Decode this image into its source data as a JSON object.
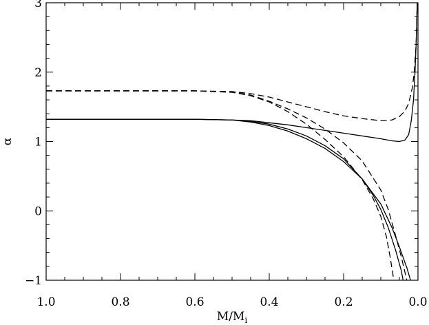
{
  "chart_data": {
    "type": "line",
    "title": "",
    "xlabel": "M/M",
    "xlabel_subscript": "i",
    "ylabel": "α",
    "xlim": [
      1.0,
      0.0
    ],
    "ylim": [
      -1.0,
      3.0
    ],
    "x_reversed": true,
    "grid": false,
    "legend": "none",
    "x_ticks": [
      1.0,
      0.8,
      0.6,
      0.4,
      0.2,
      0.0
    ],
    "x_tick_labels": [
      "1.0",
      "0.8",
      "0.6",
      "0.4",
      "0.2",
      "0.0"
    ],
    "y_ticks": [
      -1,
      0,
      1,
      2,
      3
    ],
    "y_tick_labels": [
      "−1",
      "0",
      "1",
      "2",
      "3"
    ],
    "series": [
      {
        "style": "solid",
        "color": "#000000",
        "points": [
          [
            1.0,
            1.32
          ],
          [
            0.9,
            1.32
          ],
          [
            0.8,
            1.32
          ],
          [
            0.7,
            1.32
          ],
          [
            0.6,
            1.32
          ],
          [
            0.5,
            1.31
          ],
          [
            0.45,
            1.3
          ],
          [
            0.4,
            1.27
          ],
          [
            0.35,
            1.24
          ],
          [
            0.3,
            1.2
          ],
          [
            0.25,
            1.16
          ],
          [
            0.2,
            1.12
          ],
          [
            0.15,
            1.08
          ],
          [
            0.1,
            1.04
          ],
          [
            0.07,
            1.01
          ],
          [
            0.05,
            1.0
          ],
          [
            0.035,
            1.02
          ],
          [
            0.025,
            1.1
          ],
          [
            0.018,
            1.3
          ],
          [
            0.012,
            1.6
          ],
          [
            0.008,
            2.0
          ],
          [
            0.005,
            2.4
          ],
          [
            0.003,
            2.8
          ],
          [
            0.002,
            3.0
          ]
        ]
      },
      {
        "style": "solid",
        "color": "#000000",
        "points": [
          [
            1.0,
            1.32
          ],
          [
            0.9,
            1.32
          ],
          [
            0.8,
            1.32
          ],
          [
            0.7,
            1.32
          ],
          [
            0.6,
            1.32
          ],
          [
            0.5,
            1.31
          ],
          [
            0.45,
            1.29
          ],
          [
            0.4,
            1.25
          ],
          [
            0.35,
            1.18
          ],
          [
            0.3,
            1.08
          ],
          [
            0.25,
            0.94
          ],
          [
            0.2,
            0.75
          ],
          [
            0.15,
            0.46
          ],
          [
            0.12,
            0.22
          ],
          [
            0.1,
            0.02
          ],
          [
            0.08,
            -0.24
          ],
          [
            0.06,
            -0.57
          ],
          [
            0.045,
            -0.86
          ],
          [
            0.04,
            -1.0
          ]
        ]
      },
      {
        "style": "solid",
        "color": "#000000",
        "points": [
          [
            1.0,
            1.32
          ],
          [
            0.9,
            1.32
          ],
          [
            0.8,
            1.32
          ],
          [
            0.7,
            1.32
          ],
          [
            0.6,
            1.32
          ],
          [
            0.5,
            1.31
          ],
          [
            0.45,
            1.28
          ],
          [
            0.4,
            1.23
          ],
          [
            0.35,
            1.15
          ],
          [
            0.3,
            1.04
          ],
          [
            0.25,
            0.9
          ],
          [
            0.2,
            0.71
          ],
          [
            0.15,
            0.46
          ],
          [
            0.1,
            0.1
          ],
          [
            0.07,
            -0.24
          ],
          [
            0.05,
            -0.52
          ],
          [
            0.03,
            -0.82
          ],
          [
            0.02,
            -1.0
          ]
        ]
      },
      {
        "style": "dashed",
        "color": "#000000",
        "points": [
          [
            1.0,
            1.73
          ],
          [
            0.9,
            1.73
          ],
          [
            0.8,
            1.73
          ],
          [
            0.7,
            1.73
          ],
          [
            0.6,
            1.73
          ],
          [
            0.5,
            1.72
          ],
          [
            0.45,
            1.69
          ],
          [
            0.4,
            1.64
          ],
          [
            0.35,
            1.57
          ],
          [
            0.3,
            1.5
          ],
          [
            0.25,
            1.43
          ],
          [
            0.2,
            1.37
          ],
          [
            0.15,
            1.33
          ],
          [
            0.1,
            1.3
          ],
          [
            0.07,
            1.31
          ],
          [
            0.05,
            1.36
          ],
          [
            0.035,
            1.44
          ],
          [
            0.025,
            1.55
          ],
          [
            0.015,
            1.78
          ],
          [
            0.01,
            2.0
          ],
          [
            0.005,
            2.4
          ],
          [
            0.002,
            3.0
          ]
        ]
      },
      {
        "style": "dashed",
        "color": "#000000",
        "points": [
          [
            1.0,
            1.73
          ],
          [
            0.9,
            1.73
          ],
          [
            0.8,
            1.73
          ],
          [
            0.7,
            1.73
          ],
          [
            0.6,
            1.73
          ],
          [
            0.5,
            1.71
          ],
          [
            0.45,
            1.67
          ],
          [
            0.4,
            1.58
          ],
          [
            0.35,
            1.47
          ],
          [
            0.3,
            1.34
          ],
          [
            0.25,
            1.18
          ],
          [
            0.2,
            0.98
          ],
          [
            0.15,
            0.72
          ],
          [
            0.1,
            0.3
          ],
          [
            0.08,
            0.02
          ],
          [
            0.06,
            -0.36
          ],
          [
            0.045,
            -0.66
          ],
          [
            0.03,
            -1.0
          ]
        ]
      },
      {
        "style": "dashed",
        "color": "#000000",
        "points": [
          [
            1.0,
            1.73
          ],
          [
            0.9,
            1.73
          ],
          [
            0.8,
            1.73
          ],
          [
            0.7,
            1.73
          ],
          [
            0.6,
            1.73
          ],
          [
            0.5,
            1.71
          ],
          [
            0.45,
            1.66
          ],
          [
            0.4,
            1.57
          ],
          [
            0.35,
            1.43
          ],
          [
            0.3,
            1.25
          ],
          [
            0.25,
            1.03
          ],
          [
            0.2,
            0.78
          ],
          [
            0.15,
            0.45
          ],
          [
            0.12,
            0.17
          ],
          [
            0.1,
            -0.08
          ],
          [
            0.085,
            -0.37
          ],
          [
            0.075,
            -0.66
          ],
          [
            0.065,
            -1.0
          ]
        ]
      }
    ]
  }
}
